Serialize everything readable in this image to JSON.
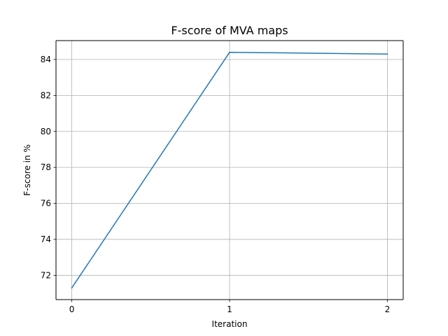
{
  "chart_data": {
    "type": "line",
    "title": "F-score of MVA maps",
    "xlabel": "Iteration",
    "ylabel": "F-score in %",
    "x": [
      0,
      1,
      2
    ],
    "series": [
      {
        "values": [
          71.3,
          84.4,
          84.3
        ],
        "color": "#1f77b4"
      }
    ],
    "xlim": [
      -0.1,
      2.1
    ],
    "ylim": [
      70.65,
      85.05
    ],
    "xticks": [
      0,
      1,
      2
    ],
    "yticks": [
      72,
      74,
      76,
      78,
      80,
      82,
      84
    ],
    "grid": true,
    "grid_color": "#b0b0b0",
    "legend": false
  }
}
